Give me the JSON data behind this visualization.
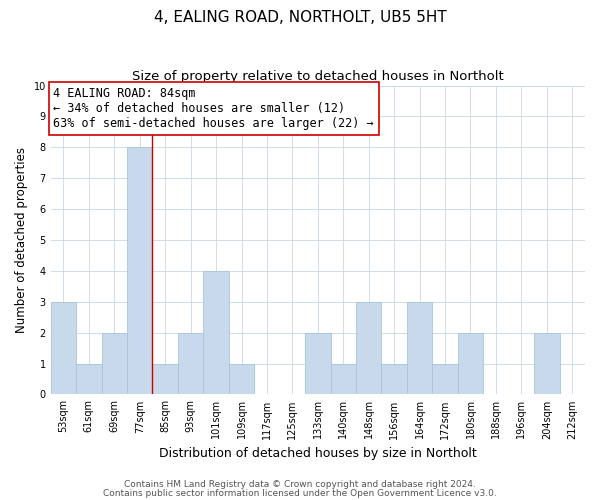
{
  "title": "4, EALING ROAD, NORTHOLT, UB5 5HT",
  "subtitle": "Size of property relative to detached houses in Northolt",
  "xlabel": "Distribution of detached houses by size in Northolt",
  "ylabel": "Number of detached properties",
  "bin_labels": [
    "53sqm",
    "61sqm",
    "69sqm",
    "77sqm",
    "85sqm",
    "93sqm",
    "101sqm",
    "109sqm",
    "117sqm",
    "125sqm",
    "133sqm",
    "140sqm",
    "148sqm",
    "156sqm",
    "164sqm",
    "172sqm",
    "180sqm",
    "188sqm",
    "196sqm",
    "204sqm",
    "212sqm"
  ],
  "bar_values": [
    3,
    1,
    2,
    8,
    1,
    2,
    4,
    1,
    0,
    0,
    2,
    1,
    3,
    1,
    3,
    1,
    2,
    0,
    0,
    2,
    0
  ],
  "bar_color": "#c8d9eb",
  "bar_edge_color": "#a8c4d8",
  "red_line_x": 3.5,
  "annotation_text": "4 EALING ROAD: 84sqm\n← 34% of detached houses are smaller (12)\n63% of semi-detached houses are larger (22) →",
  "annotation_box_color": "#ffffff",
  "annotation_box_edge_color": "#cc0000",
  "ylim": [
    0,
    10
  ],
  "yticks": [
    0,
    1,
    2,
    3,
    4,
    5,
    6,
    7,
    8,
    9,
    10
  ],
  "background_color": "#ffffff",
  "grid_color": "#c8d8e8",
  "footer_line1": "Contains HM Land Registry data © Crown copyright and database right 2024.",
  "footer_line2": "Contains public sector information licensed under the Open Government Licence v3.0.",
  "title_fontsize": 11,
  "subtitle_fontsize": 9.5,
  "annotation_fontsize": 8.5,
  "xlabel_fontsize": 9,
  "ylabel_fontsize": 8.5,
  "footer_fontsize": 6.5,
  "tick_fontsize": 7
}
